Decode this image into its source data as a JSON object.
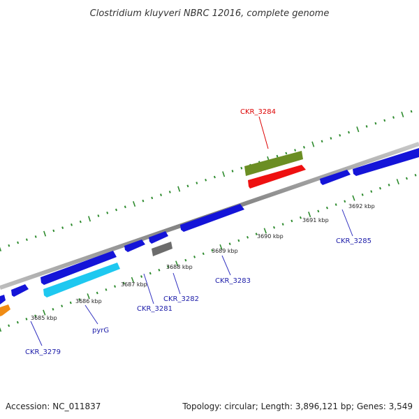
{
  "title": "Clostridium kluyveri NBRC 12016, complete genome",
  "accession": "Accession: NC_011837",
  "topology": "Topology: circular; Length: 3,896,121 bp; Genes: 3,549",
  "colors": {
    "backbone": "#8a8a8a",
    "tick": "#2e8b2e",
    "blue_gene": "#1414d8",
    "cyan_gene": "#1ec8f0",
    "orange_gene": "#f08c14",
    "gray_gene": "#6c6c6c",
    "olive_gene": "#6b8e23",
    "red_gene": "#ee1111",
    "label_blue": "#1a1aa8",
    "label_red": "#dd0000",
    "label_line_blue": "#3030c0",
    "label_line_red": "#dd0000"
  },
  "kbp_ticks": [
    {
      "label": "3685 kbp"
    },
    {
      "label": "3686 kbp"
    },
    {
      "label": "3687 kbp"
    },
    {
      "label": "3688 kbp"
    },
    {
      "label": "3689 kbp"
    },
    {
      "label": "3690 kbp"
    },
    {
      "label": "3691 kbp"
    },
    {
      "label": "3692 kbp"
    }
  ],
  "gene_labels": [
    {
      "name": "CKR_3279",
      "color": "blue"
    },
    {
      "name": "pyrG",
      "color": "blue"
    },
    {
      "name": "CKR_3281",
      "color": "blue"
    },
    {
      "name": "CKR_3282",
      "color": "blue"
    },
    {
      "name": "CKR_3283",
      "color": "blue"
    },
    {
      "name": "CKR_3285",
      "color": "blue"
    },
    {
      "name": "CKR_3284",
      "color": "red"
    }
  ],
  "genes": [
    {
      "color": "orange_gene",
      "strand": "reverse"
    },
    {
      "color": "blue_gene",
      "strand": "forward"
    },
    {
      "color": "blue_gene",
      "strand": "forward"
    },
    {
      "color": "blue_gene",
      "strand": "forward"
    },
    {
      "color": "cyan_gene",
      "strand": "forward"
    },
    {
      "color": "blue_gene",
      "strand": "forward"
    },
    {
      "color": "blue_gene",
      "strand": "forward"
    },
    {
      "color": "gray_gene",
      "strand": "forward"
    },
    {
      "color": "blue_gene",
      "strand": "forward"
    },
    {
      "color": "blue_gene",
      "strand": "forward"
    },
    {
      "color": "blue_gene",
      "strand": "forward"
    },
    {
      "color": "olive_gene",
      "strand": "forward"
    },
    {
      "color": "red_gene",
      "strand": "forward"
    }
  ]
}
